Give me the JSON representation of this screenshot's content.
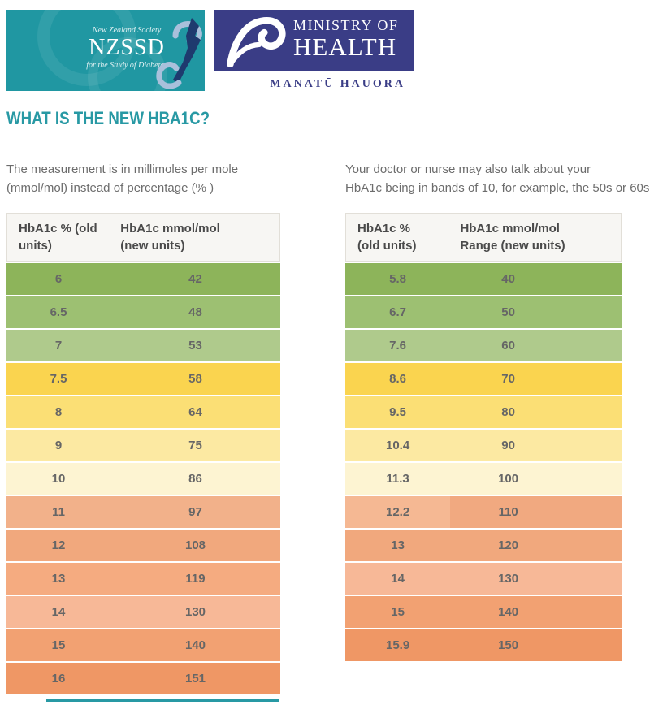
{
  "header": {
    "nzssd": {
      "society_line": "New Zealand Society",
      "acronym": "NZSSD",
      "tagline": "for the Study of Diabetes",
      "bg_color": "#2097A2"
    },
    "moh": {
      "name_line1": "MINISTRY OF",
      "name_line2": "HEALTH",
      "maori_name": "MANATŪ HAUORA",
      "bg_color": "#3A3D86"
    }
  },
  "title": "WHAT IS THE NEW HBA1C?",
  "colors": {
    "accent_teal": "#2899A4",
    "body_text": "#6C6C6C",
    "table_header_bg": "#F7F6F3"
  },
  "left": {
    "intro": [
      "The measurement is in millimoles per mole",
      "(mmol/mol) instead of percentage (% )"
    ],
    "table": {
      "col1_header": [
        "HbA1c % (old",
        "units)"
      ],
      "col2_header": [
        "HbA1c mmol/mol",
        "(new units)"
      ],
      "rows": [
        {
          "old": "6",
          "new": "42",
          "color": "#8DB45A"
        },
        {
          "old": "6.5",
          "new": "48",
          "color": "#9DC072"
        },
        {
          "old": "7",
          "new": "53",
          "color": "#AFCA8C"
        },
        {
          "old": "7.5",
          "new": "58",
          "color": "#FAD44F"
        },
        {
          "old": "8",
          "new": "64",
          "color": "#FBDF75"
        },
        {
          "old": "9",
          "new": "75",
          "color": "#FCE9A2"
        },
        {
          "old": "10",
          "new": "86",
          "color": "#FDF4D2"
        },
        {
          "old": "11",
          "new": "97",
          "color": "#F2B18A"
        },
        {
          "old": "12",
          "new": "108",
          "color": "#F1A87D"
        },
        {
          "old": "13",
          "new": "119",
          "color": "#F5AB80"
        },
        {
          "old": "14",
          "new": "130",
          "color": "#F7B897"
        },
        {
          "old": "15",
          "new": "140",
          "color": "#F2A172"
        },
        {
          "old": "16",
          "new": "151",
          "color": "#EF9765"
        }
      ]
    }
  },
  "right": {
    "intro": [
      "Your doctor or nurse may also talk about your",
      "HbA1c being in bands of 10, for example, the 50s or 60s."
    ],
    "table": {
      "col1_header": [
        "HbA1c %",
        "(old units)"
      ],
      "col2_header": [
        "HbA1c mmol/mol",
        "Range (new units)"
      ],
      "rows": [
        {
          "old": "5.8",
          "new": "40",
          "color": "#8DB45A"
        },
        {
          "old": "6.7",
          "new": "50",
          "color": "#9DC072"
        },
        {
          "old": "7.6",
          "new": "60",
          "color": "#AFCA8C"
        },
        {
          "old": "8.6",
          "new": "70",
          "color": "#FAD44F"
        },
        {
          "old": "9.5",
          "new": "80",
          "color": "#FBDF75"
        },
        {
          "old": "10.4",
          "new": "90",
          "color": "#FCE9A2"
        },
        {
          "old": "11.3",
          "new": "100",
          "color": "#FDF4D2"
        },
        {
          "old": "12.2",
          "new": "110",
          "color": "#F5B893",
          "color2": "#F1A980"
        },
        {
          "old": "13",
          "new": "120",
          "color": "#F1A87D"
        },
        {
          "old": "14",
          "new": "130",
          "color": "#F7B897"
        },
        {
          "old": "15",
          "new": "140",
          "color": "#F2A172"
        },
        {
          "old": "15.9",
          "new": "150",
          "color": "#EF9765"
        }
      ]
    }
  }
}
